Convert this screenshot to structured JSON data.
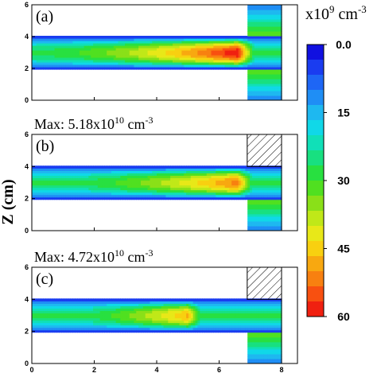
{
  "chart_data": {
    "type": "heatmap",
    "ylabel": "Z (cm)",
    "x_ticks": [
      "0",
      "2",
      "4",
      "6",
      "8"
    ],
    "y_ticks": [
      "0",
      "2",
      "4",
      "6"
    ],
    "xlim": [
      0,
      8.5
    ],
    "ylim": [
      0,
      6
    ],
    "colorbar": {
      "unit_base": "x10",
      "unit_exp": "9",
      "unit_suffix": " cm",
      "unit_suffix_exp": "-3",
      "min": 0,
      "max": 60,
      "tick_labels": [
        "0.0",
        "15",
        "30",
        "45",
        "60"
      ],
      "tick_values": [
        0,
        15,
        30,
        45,
        60
      ],
      "colors": [
        "#1010e0",
        "#1a3cf0",
        "#1e66f5",
        "#1f8ef5",
        "#1eb8f0",
        "#10d8e8",
        "#10e0b8",
        "#18e080",
        "#28e040",
        "#50e020",
        "#8ae018",
        "#c0e818",
        "#e8e818",
        "#f8d010",
        "#f8a810",
        "#f88010",
        "#f85010",
        "#f02010"
      ]
    },
    "panels": [
      {
        "label": "(a)",
        "max_prefix": "",
        "max_mantissa": "",
        "max_exp": "",
        "max_suffix": "",
        "max_suffix_exp": "",
        "hatched_right_region": false,
        "channel_z": [
          2,
          4
        ],
        "right_region_x": [
          6.9,
          8
        ],
        "peak_x": 6.6,
        "peak_value": 60
      },
      {
        "label": "(b)",
        "max_prefix": "Max: 5.18x10",
        "max_mantissa": "5.18",
        "max_exp": "10",
        "max_suffix": " cm",
        "max_suffix_exp": "-3",
        "hatched_right_region": true,
        "channel_z": [
          2,
          4
        ],
        "right_region_x": [
          6.9,
          8
        ],
        "peak_x": 6.6,
        "peak_value": 51.8
      },
      {
        "label": "(c)",
        "max_prefix": "Max: 4.72x10",
        "max_mantissa": "4.72",
        "max_exp": "10",
        "max_suffix": " cm",
        "max_suffix_exp": "-3",
        "hatched_right_region": true,
        "channel_z": [
          2,
          4
        ],
        "right_region_x": [
          6.9,
          8
        ],
        "peak_x": 5,
        "peak_value": 47.2
      }
    ]
  }
}
